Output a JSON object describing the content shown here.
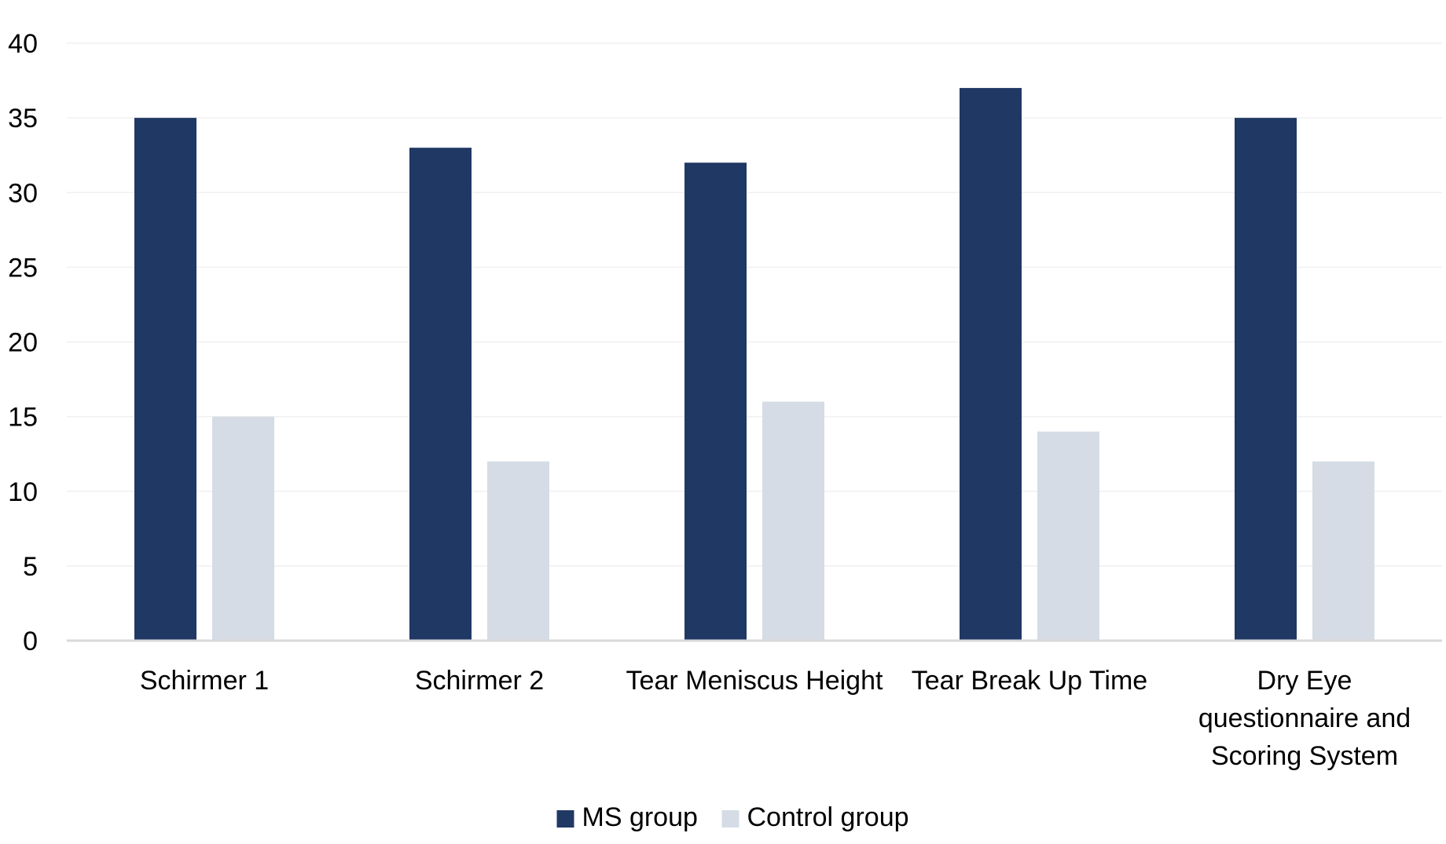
{
  "chart_data": {
    "type": "bar",
    "title": "",
    "xlabel": "",
    "ylabel": "",
    "ylim": [
      0,
      40
    ],
    "yticks": [
      0,
      5,
      10,
      15,
      20,
      25,
      30,
      35,
      40
    ],
    "grid": true,
    "legend_position": "bottom",
    "categories": [
      [
        "Schirmer 1"
      ],
      [
        "Schirmer 2"
      ],
      [
        "Tear Meniscus Height"
      ],
      [
        "Tear Break Up Time"
      ],
      [
        "Dry Eye",
        "questionnaire and",
        "Scoring System"
      ]
    ],
    "series": [
      {
        "name": "MS group",
        "color": "#203864",
        "values": [
          35,
          33,
          32,
          37,
          35
        ]
      },
      {
        "name": "Control group",
        "color": "#d6dce5",
        "values": [
          15,
          12,
          16,
          14,
          12
        ]
      }
    ]
  }
}
